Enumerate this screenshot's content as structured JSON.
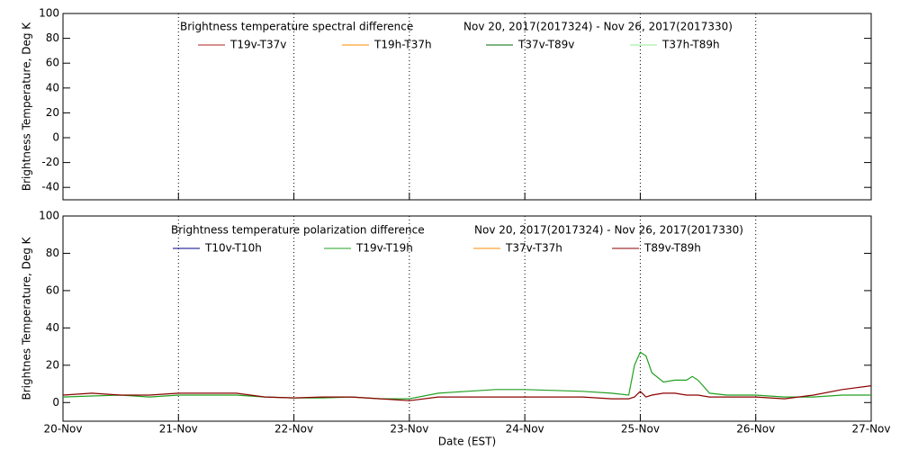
{
  "chart_data": [
    {
      "type": "line",
      "title": "Brightness temperature spectral difference",
      "subtitle": "Nov 20, 2017(2017324) - Nov 26, 2017(2017330)",
      "y_label": "Brightness Temperature, Deg K",
      "xlim": [
        0,
        7
      ],
      "xticks": [
        0,
        1,
        2,
        3,
        4,
        5,
        6,
        7
      ],
      "ylim": [
        -50,
        100
      ],
      "yticks": [
        -40,
        -20,
        0,
        20,
        40,
        60,
        80,
        100
      ],
      "grid": true,
      "series": [
        {
          "name": "T19v-T37v",
          "color": "#b22222"
        },
        {
          "name": "T19h-T37h",
          "color": "#ff8c00"
        },
        {
          "name": "T37v-T89v",
          "color": "#006400"
        },
        {
          "name": "T37h-T89h",
          "color": "#90ee90"
        }
      ]
    },
    {
      "type": "line",
      "title": "Brightness temperature polarization difference",
      "subtitle": "Nov 20, 2017(2017324) - Nov 26, 2017(2017330)",
      "y_label": "Brightnes Temperature, Deg K",
      "x_label": "Date (EST)",
      "xlim": [
        0,
        7
      ],
      "xticks": [
        {
          "value": 0,
          "label": "20-Nov"
        },
        {
          "value": 1,
          "label": "21-Nov"
        },
        {
          "value": 2,
          "label": "22-Nov"
        },
        {
          "value": 3,
          "label": "23-Nov"
        },
        {
          "value": 4,
          "label": "24-Nov"
        },
        {
          "value": 5,
          "label": "25-Nov"
        },
        {
          "value": 6,
          "label": "26-Nov"
        },
        {
          "value": 7,
          "label": "27-Nov"
        }
      ],
      "ylim": [
        -10,
        100
      ],
      "yticks": [
        0,
        20,
        40,
        60,
        80,
        100
      ],
      "grid": true,
      "x": [
        0,
        0.25,
        0.5,
        0.75,
        1,
        1.25,
        1.5,
        1.75,
        2,
        2.25,
        2.5,
        2.75,
        3,
        3.25,
        3.5,
        3.75,
        4,
        4.25,
        4.5,
        4.75,
        4.9,
        4.95,
        5.0,
        5.05,
        5.1,
        5.2,
        5.3,
        5.4,
        5.45,
        5.5,
        5.6,
        5.75,
        6,
        6.25,
        6.5,
        6.75,
        7
      ],
      "series": [
        {
          "name": "T10v-T10h",
          "color": "#00008b",
          "values": [
            null,
            null,
            null,
            null,
            null,
            null,
            null,
            null,
            null,
            null,
            null,
            null,
            null,
            null,
            null,
            null,
            null,
            null,
            null,
            null,
            null,
            null,
            null,
            null,
            null,
            null,
            null,
            null,
            null,
            null,
            null,
            null,
            null,
            null,
            null,
            null,
            null
          ]
        },
        {
          "name": "T19v-T19h",
          "color": "#22a022",
          "values": [
            3,
            3.5,
            4,
            3,
            4,
            4,
            4,
            3,
            2.5,
            2.5,
            3,
            2,
            2,
            5,
            6,
            7,
            7,
            6.5,
            6,
            5,
            4,
            20,
            27,
            25,
            16,
            11,
            12,
            12,
            14,
            12,
            5,
            4,
            4,
            3,
            3,
            4,
            4
          ]
        },
        {
          "name": "T37v-T37h",
          "color": "#ff8c00",
          "values": [
            null,
            null,
            null,
            null,
            null,
            null,
            null,
            null,
            null,
            null,
            null,
            null,
            null,
            null,
            null,
            null,
            null,
            null,
            null,
            null,
            null,
            null,
            null,
            null,
            null,
            null,
            null,
            null,
            null,
            null,
            null,
            null,
            null,
            null,
            null,
            null,
            null
          ]
        },
        {
          "name": "T89v-T89h",
          "color": "#8b0000",
          "values": [
            4,
            5,
            4,
            4,
            5,
            5,
            5,
            3,
            2.5,
            3,
            3,
            2,
            1,
            3,
            3,
            3,
            3,
            3,
            3,
            2,
            2,
            3,
            6,
            3,
            4,
            5,
            5,
            4,
            4,
            4,
            3,
            3,
            3,
            2,
            4,
            7,
            9
          ]
        }
      ]
    }
  ]
}
